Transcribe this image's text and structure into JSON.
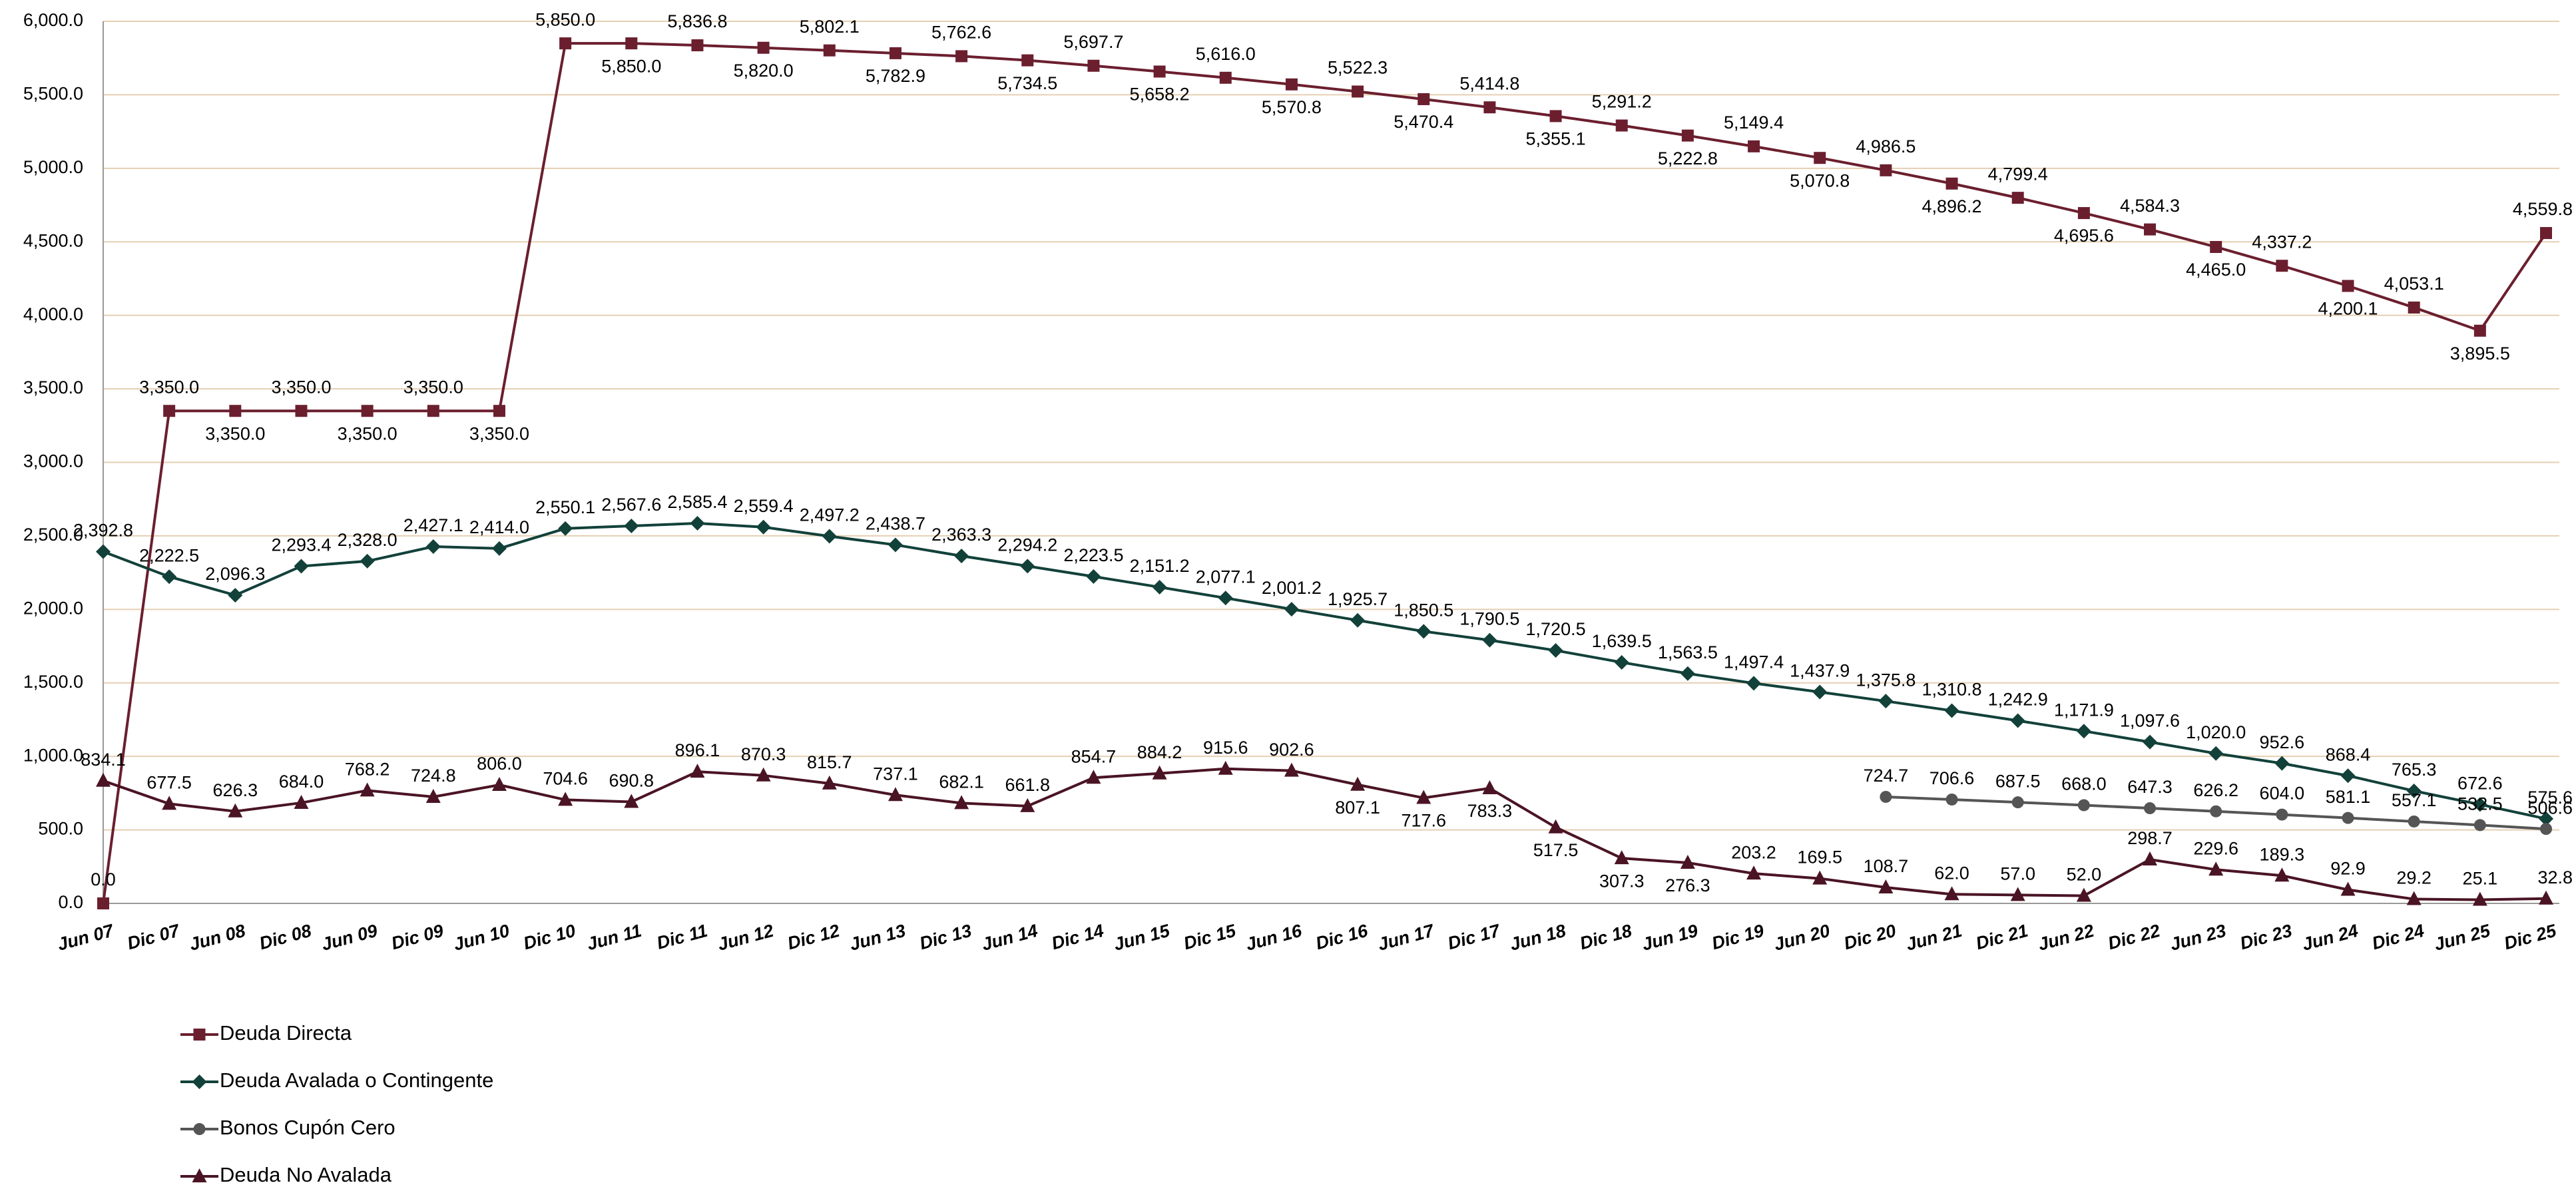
{
  "chart_data": {
    "type": "line",
    "categories": [
      "Jun 07",
      "Dic 07",
      "Jun 08",
      "Dic 08",
      "Jun 09",
      "Dic 09",
      "Jun 10",
      "Dic 10",
      "Jun 11",
      "Dic 11",
      "Jun 12",
      "Dic 12",
      "Jun 13",
      "Dic 13",
      "Jun 14",
      "Dic 14",
      "Jun 15",
      "Dic 15",
      "Jun 16",
      "Dic 16",
      "Jun 17",
      "Dic 17",
      "Jun 18",
      "Dic 18",
      "Jun 19",
      "Dic 19",
      "Jun 20",
      "Dic 20",
      "Jun 21",
      "Dic 21",
      "Jun 22",
      "Dic 22",
      "Jun 23",
      "Dic 23",
      "Jun 24",
      "Dic 24",
      "Jun 25",
      "Dic 25"
    ],
    "series": [
      {
        "name": "Deuda Directa",
        "color": "#6b1f2e",
        "marker": "square",
        "values": [
          0.0,
          3350.0,
          3350.0,
          3350.0,
          3350.0,
          3350.0,
          3350.0,
          5850.0,
          5850.0,
          5836.8,
          5820.0,
          5802.1,
          5782.9,
          5762.6,
          5734.5,
          5697.7,
          5658.2,
          5616.0,
          5570.8,
          5522.3,
          5470.4,
          5414.8,
          5355.1,
          5291.2,
          5222.8,
          5149.4,
          5070.8,
          4986.5,
          4896.2,
          4799.4,
          4695.6,
          4584.3,
          4465.0,
          4337.2,
          4200.1,
          4053.1,
          3895.5,
          4559.8
        ],
        "value_labels": [
          "0.0",
          "3,350.0",
          "3,350.0",
          "3,350.0",
          "3,350.0",
          "3,350.0",
          "3,350.0",
          "5,850.0",
          "5,850.0",
          "5,836.8",
          "5,820.0",
          "5,802.1",
          "5,782.9",
          "5,762.6",
          "5,734.5",
          "5,697.7",
          "5,658.2",
          "5,616.0",
          "5,570.8",
          "5,522.3",
          "5,470.4",
          "5,414.8",
          "5,355.1",
          "5,291.2",
          "5,222.8",
          "5,149.4",
          "5,070.8",
          "4,986.5",
          "4,896.2",
          "4,799.4",
          "4,695.6",
          "4,584.3",
          "4,465.0",
          "4,337.2",
          "4,200.1",
          "4,053.1",
          "3,895.5",
          "4,559.8"
        ]
      },
      {
        "name": "Deuda Avalada o Contingente",
        "color": "#12413a",
        "marker": "diamond",
        "values": [
          2392.8,
          2222.5,
          2096.3,
          2293.4,
          2328.0,
          2427.1,
          2414.0,
          2550.1,
          2567.6,
          2585.4,
          2559.4,
          2497.2,
          2438.7,
          2363.3,
          2294.2,
          2223.5,
          2151.2,
          2077.1,
          2001.2,
          1925.7,
          1850.5,
          1790.5,
          1720.5,
          1639.5,
          1563.5,
          1497.4,
          1437.9,
          1375.8,
          1310.8,
          1242.9,
          1171.9,
          1097.6,
          1020.0,
          952.6,
          868.4,
          765.3,
          672.6,
          575.6
        ],
        "value_labels": [
          "2,392.8",
          "2,222.5",
          "2,096.3",
          "2,293.4",
          "2,328.0",
          "2,427.1",
          "2,414.0",
          "2,550.1",
          "2,567.6",
          "2,585.4",
          "2,559.4",
          "2,497.2",
          "2,438.7",
          "2,363.3",
          "2,294.2",
          "2,223.5",
          "2,151.2",
          "2,077.1",
          "2,001.2",
          "1,925.7",
          "1,850.5",
          "1,790.5",
          "1,720.5",
          "1,639.5",
          "1,563.5",
          "1,497.4",
          "1,437.9",
          "1,375.8",
          "1,310.8",
          "1,242.9",
          "1,171.9",
          "1,097.6",
          "1,020.0",
          "952.6",
          "868.4",
          "765.3",
          "672.6",
          "575.6"
        ]
      },
      {
        "name": "Bonos Cupón Cero",
        "color": "#555555",
        "marker": "circle",
        "values": [
          null,
          null,
          null,
          null,
          null,
          null,
          null,
          null,
          null,
          null,
          null,
          null,
          null,
          null,
          null,
          null,
          null,
          null,
          null,
          null,
          null,
          null,
          null,
          null,
          null,
          null,
          null,
          724.7,
          706.6,
          687.5,
          668.0,
          647.3,
          626.2,
          604.0,
          581.1,
          557.1,
          532.5,
          506.6
        ],
        "value_labels": [
          null,
          null,
          null,
          null,
          null,
          null,
          null,
          null,
          null,
          null,
          null,
          null,
          null,
          null,
          null,
          null,
          null,
          null,
          null,
          null,
          null,
          null,
          null,
          null,
          null,
          null,
          null,
          "724.7",
          "706.6",
          "687.5",
          "668.0",
          "647.3",
          "626.2",
          "604.0",
          "581.1",
          "557.1",
          "532.5",
          "506.6"
        ]
      },
      {
        "name": "Deuda No Avalada",
        "color": "#4a1424",
        "marker": "triangle",
        "values": [
          834.1,
          677.5,
          626.3,
          684.0,
          768.2,
          724.8,
          806.0,
          704.6,
          690.8,
          896.1,
          870.3,
          815.7,
          737.1,
          682.1,
          661.8,
          854.7,
          884.2,
          915.6,
          902.6,
          807.1,
          717.6,
          783.3,
          517.5,
          307.3,
          276.3,
          203.2,
          169.5,
          108.7,
          62.0,
          57.0,
          52.0,
          298.7,
          229.6,
          189.3,
          92.9,
          29.2,
          25.1,
          32.8
        ],
        "value_labels": [
          "834.1",
          "677.5",
          "626.3",
          "684.0",
          "768.2",
          "724.8",
          "806.0",
          "704.6",
          "690.8",
          "896.1",
          "870.3",
          "815.7",
          "737.1",
          "682.1",
          "661.8",
          "854.7",
          "884.2",
          "915.6",
          "902.6",
          "807.1",
          "717.6",
          "783.3",
          "517.5",
          "307.3",
          "276.3",
          "203.2",
          "169.5",
          "108.7",
          "62.0",
          "57.0",
          "52.0",
          "298.7",
          "229.6",
          "189.3",
          "92.9",
          "29.2",
          "25.1",
          "32.8"
        ]
      }
    ],
    "ylim": [
      0,
      6000
    ],
    "yticks": [
      {
        "value": 0,
        "label": "0.0"
      },
      {
        "value": 500,
        "label": "500.0"
      },
      {
        "value": 1000,
        "label": "1,000.0"
      },
      {
        "value": 1500,
        "label": "1,500.0"
      },
      {
        "value": 2000,
        "label": "2,000.0"
      },
      {
        "value": 2500,
        "label": "2,500.0"
      },
      {
        "value": 3000,
        "label": "3,000.0"
      },
      {
        "value": 3500,
        "label": "3,500.0"
      },
      {
        "value": 4000,
        "label": "4,000.0"
      },
      {
        "value": 4500,
        "label": "4,500.0"
      },
      {
        "value": 5000,
        "label": "5,000.0"
      },
      {
        "value": 5500,
        "label": "5,500.0"
      },
      {
        "value": 6000,
        "label": "6,000.0"
      }
    ],
    "grid": true,
    "legend": "bottom-left"
  }
}
